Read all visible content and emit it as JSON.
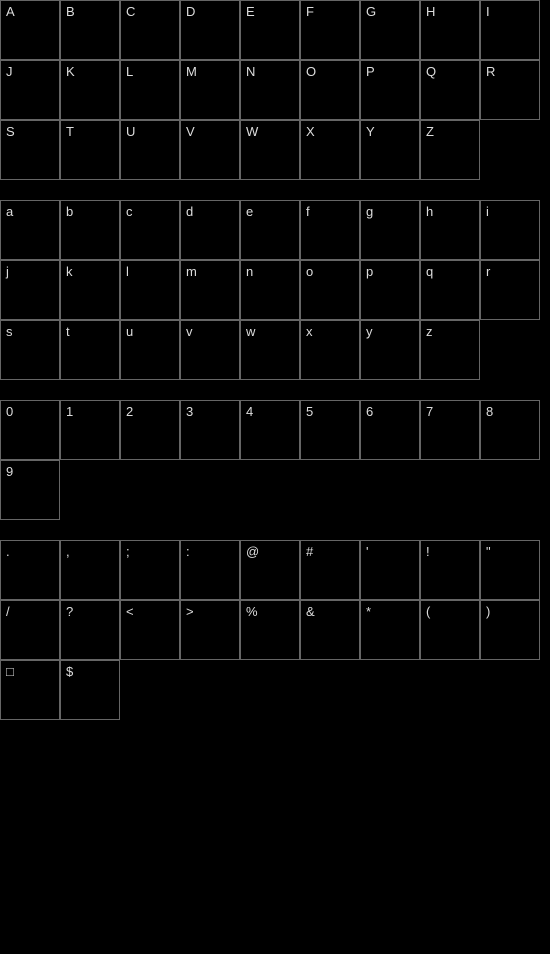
{
  "chart_type": "font_glyph_grid",
  "background_color": "#000000",
  "cell": {
    "width": 60,
    "height": 60,
    "border_color": "#666666",
    "border_width": 1
  },
  "label": {
    "color": "#dddddd",
    "font_size": 13,
    "position": "top-left"
  },
  "columns": 9,
  "section_gap": 20,
  "sections": {
    "uppercase": [
      "A",
      "B",
      "C",
      "D",
      "E",
      "F",
      "G",
      "H",
      "I",
      "J",
      "K",
      "L",
      "M",
      "N",
      "O",
      "P",
      "Q",
      "R",
      "S",
      "T",
      "U",
      "V",
      "W",
      "X",
      "Y",
      "Z"
    ],
    "lowercase": [
      "a",
      "b",
      "c",
      "d",
      "e",
      "f",
      "g",
      "h",
      "i",
      "j",
      "k",
      "l",
      "m",
      "n",
      "o",
      "p",
      "q",
      "r",
      "s",
      "t",
      "u",
      "v",
      "w",
      "x",
      "y",
      "z"
    ],
    "digits": [
      "0",
      "1",
      "2",
      "3",
      "4",
      "5",
      "6",
      "7",
      "8",
      "9"
    ],
    "symbols": [
      ".",
      ",",
      ";",
      ":",
      "@",
      "#",
      "'",
      "!",
      "\"",
      "/",
      "?",
      "<",
      ">",
      "%",
      "&",
      "*",
      "(",
      ")",
      "□",
      "$"
    ]
  }
}
